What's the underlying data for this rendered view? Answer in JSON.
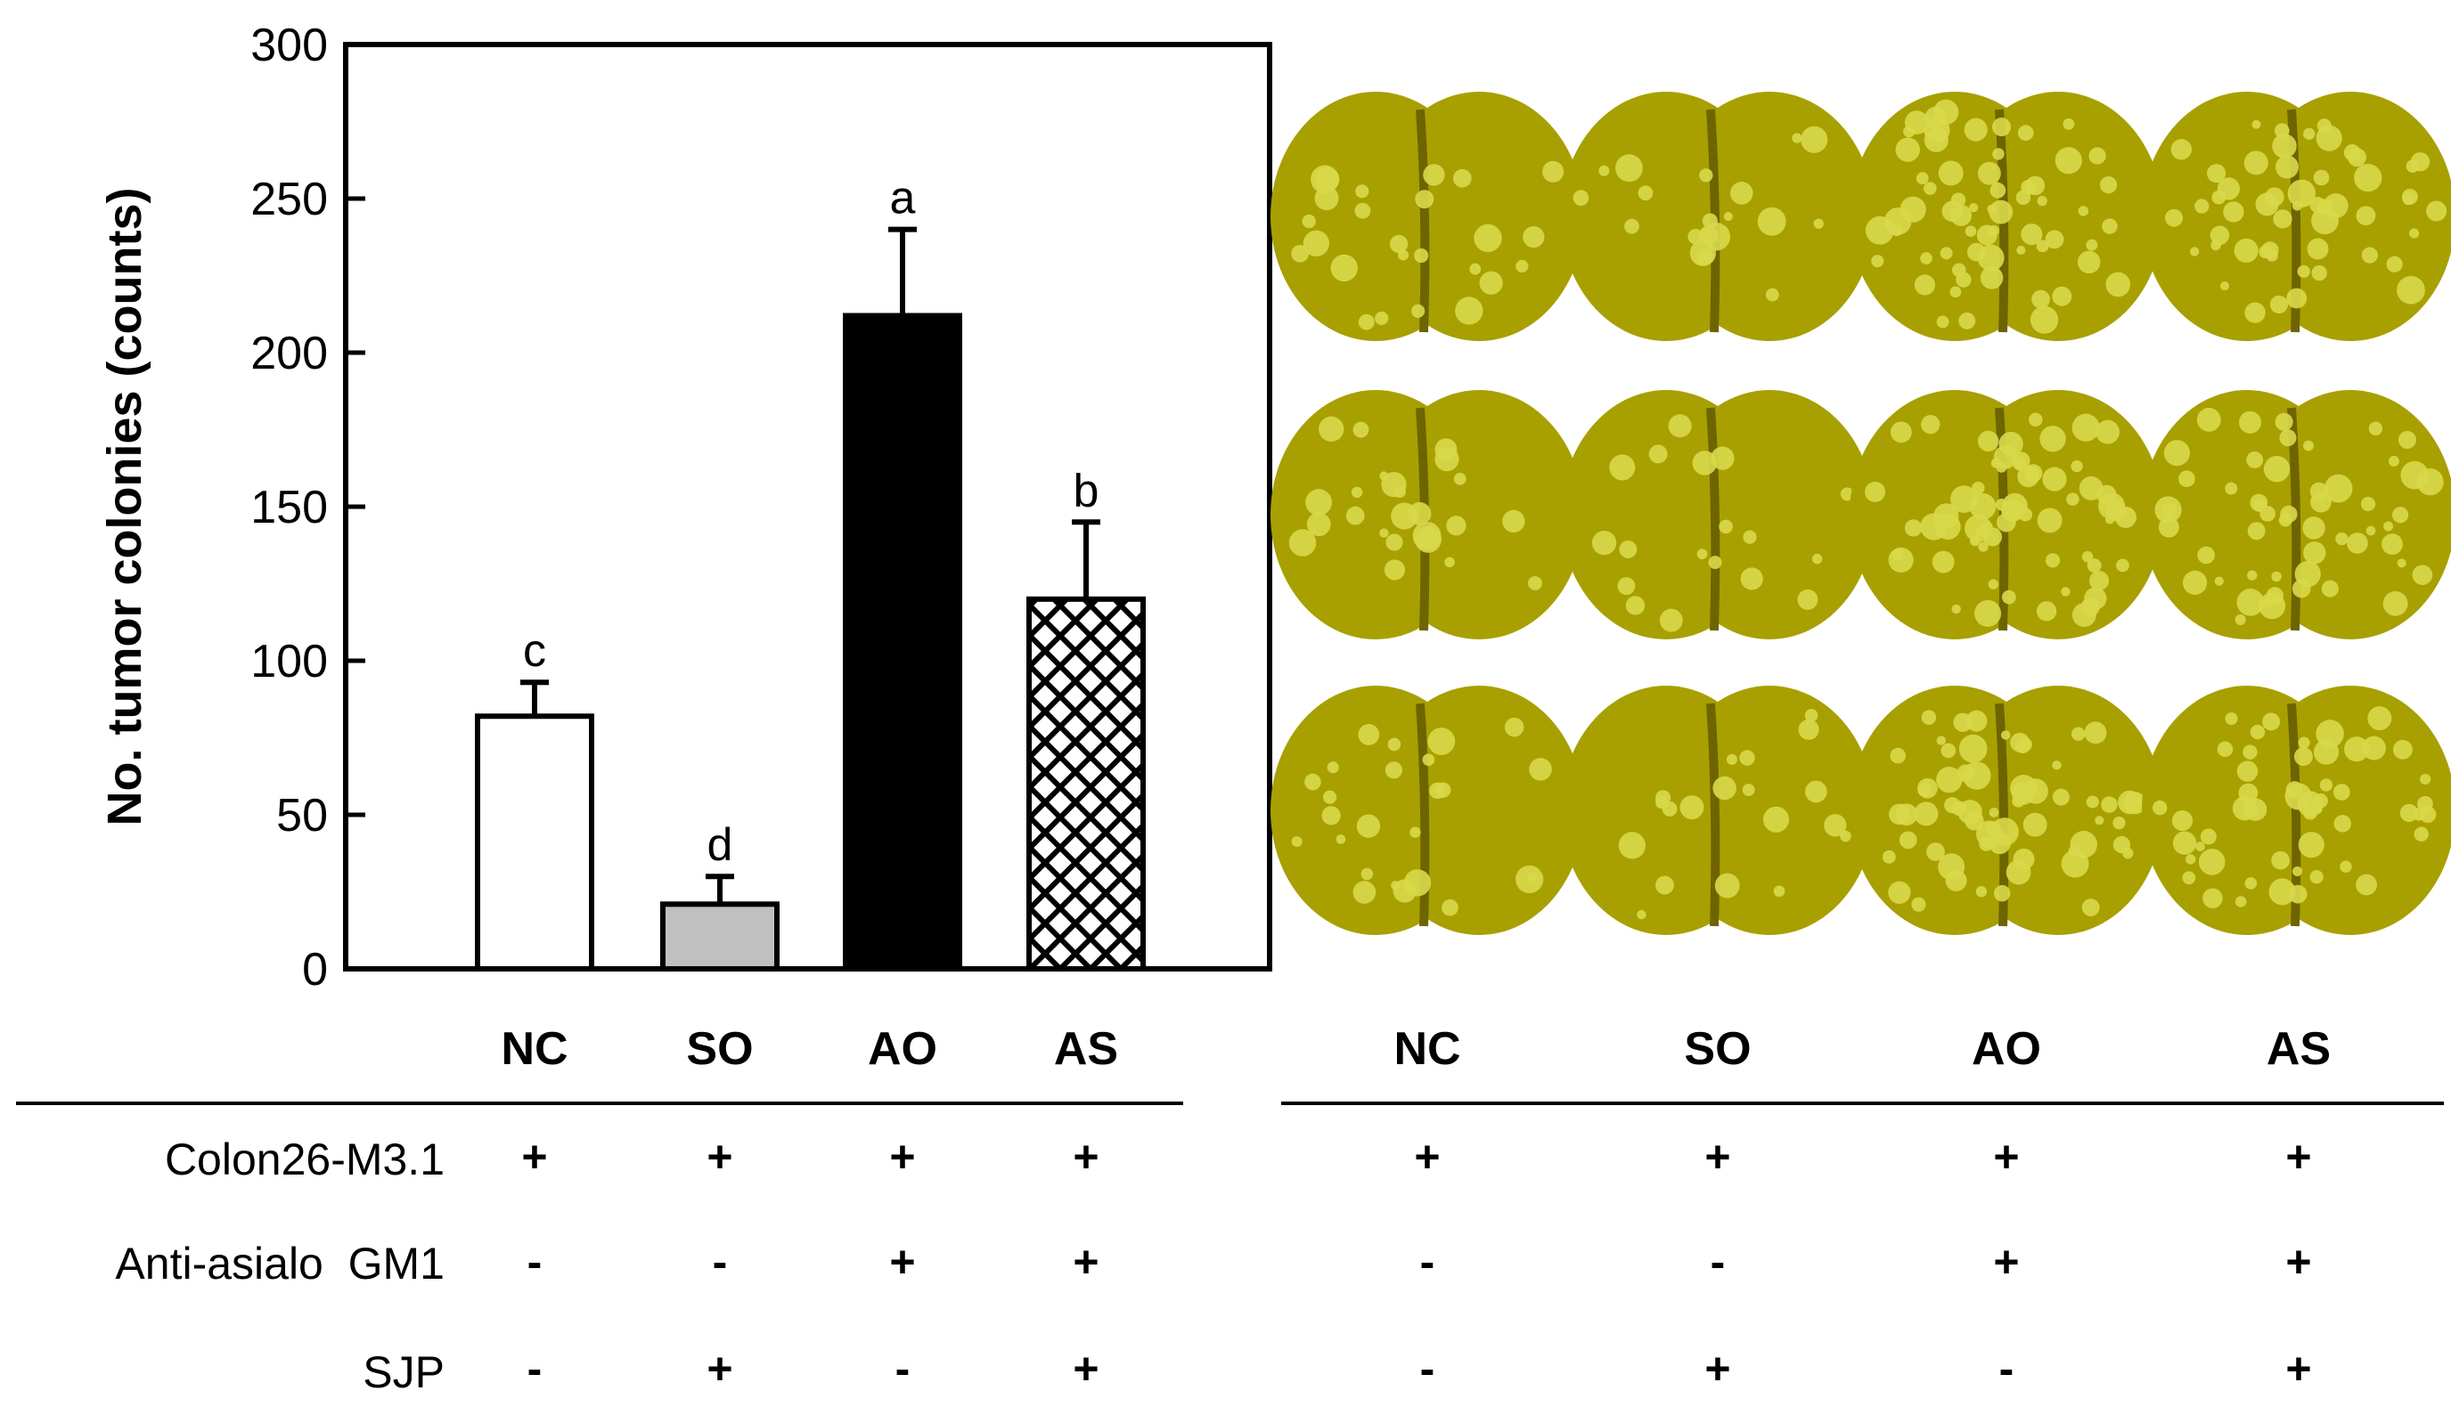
{
  "chart_data": {
    "type": "bar",
    "categories": [
      "NC",
      "SO",
      "AO",
      "AS"
    ],
    "values": [
      82,
      21,
      212,
      120
    ],
    "errors": [
      11,
      9,
      28,
      25
    ],
    "letters": [
      "c",
      "d",
      "a",
      "b"
    ],
    "ylabel": "No. tumor colonies (counts)",
    "ylim": [
      0,
      300
    ],
    "yticks": [
      0,
      50,
      100,
      150,
      200,
      250,
      300
    ],
    "bar_fills": [
      "white",
      "gray",
      "black",
      "crosshatch"
    ],
    "colors": {
      "gray": "#c0c0c0",
      "black": "#000000",
      "white": "#ffffff"
    },
    "grid": false
  },
  "treatment_table": {
    "rows": [
      {
        "label": "Colon26-M3.1",
        "values": [
          "+",
          "+",
          "+",
          "+"
        ]
      },
      {
        "label": "Anti-asialo  GM1",
        "values": [
          "-",
          "-",
          "+",
          "+"
        ]
      },
      {
        "label": "SJP",
        "values": [
          "-",
          "+",
          "-",
          "+"
        ]
      }
    ]
  },
  "photo_panel": {
    "columns": [
      "NC",
      "SO",
      "AO",
      "AS"
    ],
    "rows_per_column": 3,
    "tumor_density": [
      0.25,
      0.15,
      0.85,
      0.7
    ],
    "lung_color": "#a8a000",
    "nodule_color": "#d8d84a"
  }
}
